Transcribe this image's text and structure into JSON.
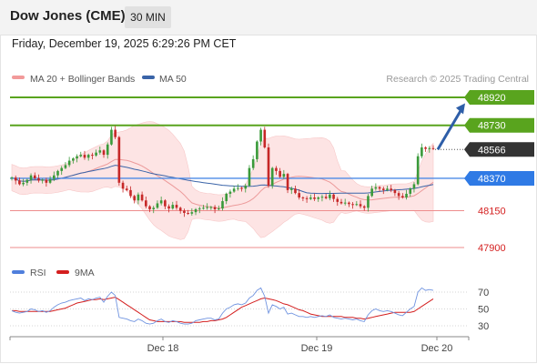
{
  "header": {
    "title": "Dow Jones (CME)",
    "timeframe": "30 MIN"
  },
  "timestamp": "Friday, December 19, 2025 6:29:26 PM CET",
  "legend": {
    "items": [
      {
        "label": "MA 20 + Bollinger Bands",
        "color": "#f29a9a"
      },
      {
        "label": "MA 50",
        "color": "#3a64a8"
      }
    ],
    "credit": "Research © 2025 Trading Central"
  },
  "rsi_legend": {
    "items": [
      {
        "label": "RSI",
        "color": "#4f7fdc"
      },
      {
        "label": "9MA",
        "color": "#d41f1f"
      }
    ]
  },
  "colors": {
    "resistance": "#59a41e",
    "support": "#4c8ae6",
    "weak_support": "#ee8d8d",
    "bollinger": "#fde4e4",
    "up": "#3a9a3a",
    "down": "#c62828",
    "projection": "#2e5ea8",
    "current": "#333333"
  },
  "chart_data": [
    {
      "type": "candlestick",
      "x_tick_labels": [
        "Dec 18",
        "Dec 19",
        "Dec 20"
      ],
      "ylim": [
        47850,
        49000
      ],
      "closes": [
        48375,
        48355,
        48330,
        48340,
        48360,
        48390,
        48370,
        48355,
        48360,
        48340,
        48365,
        48390,
        48420,
        48440,
        48460,
        48490,
        48505,
        48520,
        48530,
        48510,
        48530,
        48525,
        48545,
        48560,
        48530,
        48600,
        48700,
        48650,
        48340,
        48300,
        48290,
        48250,
        48220,
        48260,
        48220,
        48180,
        48160,
        48170,
        48200,
        48220,
        48180,
        48165,
        48190,
        48170,
        48150,
        48135,
        48130,
        48140,
        48160,
        48165,
        48170,
        48175,
        48175,
        48160,
        48165,
        48215,
        48265,
        48280,
        48300,
        48305,
        48300,
        48320,
        48440,
        48500,
        48620,
        48700,
        48580,
        48320,
        48440,
        48420,
        48380,
        48400,
        48290,
        48300,
        48270,
        48240,
        48235,
        48230,
        48240,
        48230,
        48240,
        48245,
        48235,
        48260,
        48230,
        48210,
        48200,
        48205,
        48195,
        48190,
        48195,
        48180,
        48170,
        48250,
        48300,
        48310,
        48300,
        48290,
        48300,
        48290,
        48270,
        48250,
        48240,
        48265,
        48300,
        48330,
        48520,
        48580,
        48570,
        48575,
        48570
      ],
      "levels": [
        {
          "value": 48920,
          "label": "48920",
          "kind": "resistance"
        },
        {
          "value": 48730,
          "label": "48730",
          "kind": "resistance"
        },
        {
          "value": 48566,
          "label": "48566",
          "kind": "current"
        },
        {
          "value": 48370,
          "label": "48370",
          "kind": "support"
        },
        {
          "value": 48150,
          "label": "48150",
          "kind": "weak_support"
        },
        {
          "value": 47900,
          "label": "47900",
          "kind": "weak_support"
        }
      ],
      "projection": {
        "from": 48566,
        "to": 48880
      },
      "series": [
        {
          "name": "MA 20 + Bollinger Bands"
        },
        {
          "name": "MA 50"
        }
      ]
    },
    {
      "type": "line",
      "ylim": [
        20,
        80
      ],
      "y_tick_labels": [
        "70",
        "50",
        "30"
      ],
      "series": [
        {
          "name": "RSI",
          "values": [
            48,
            46,
            45,
            46,
            47,
            50,
            49,
            47,
            48,
            46,
            48,
            52,
            55,
            57,
            58,
            60,
            61,
            62,
            63,
            60,
            62,
            61,
            63,
            64,
            58,
            65,
            70,
            66,
            40,
            39,
            38,
            36,
            35,
            38,
            36,
            33,
            32,
            33,
            36,
            38,
            35,
            34,
            36,
            35,
            33,
            32,
            32,
            33,
            36,
            37,
            38,
            39,
            39,
            37,
            38,
            45,
            50,
            52,
            55,
            56,
            55,
            57,
            63,
            66,
            72,
            75,
            65,
            45,
            55,
            53,
            50,
            52,
            44,
            45,
            43,
            41,
            41,
            40,
            41,
            40,
            41,
            42,
            41,
            43,
            40,
            39,
            38,
            39,
            38,
            37,
            38,
            36,
            35,
            43,
            48,
            50,
            48,
            47,
            48,
            47,
            45,
            43,
            42,
            46,
            50,
            53,
            70,
            75,
            72,
            73,
            72
          ]
        },
        {
          "name": "9MA",
          "values": [
            48,
            48,
            47,
            47,
            47,
            47,
            47,
            47,
            47,
            47,
            47,
            48,
            49,
            50,
            51,
            53,
            55,
            57,
            58,
            59,
            60,
            61,
            61,
            62,
            61,
            62,
            63,
            64,
            61,
            58,
            55,
            52,
            49,
            46,
            43,
            40,
            37,
            36,
            35,
            35,
            35,
            35,
            35,
            35,
            35,
            34,
            34,
            34,
            34,
            34,
            35,
            35,
            36,
            36,
            37,
            38,
            40,
            43,
            46,
            49,
            52,
            54,
            56,
            58,
            60,
            62,
            63,
            62,
            61,
            60,
            58,
            56,
            55,
            53,
            51,
            49,
            48,
            46,
            44,
            43,
            42,
            41,
            41,
            41,
            41,
            41,
            41,
            40,
            40,
            40,
            39,
            39,
            38,
            39,
            40,
            41,
            42,
            43,
            44,
            45,
            46,
            46,
            46,
            46,
            46,
            47,
            50,
            53,
            56,
            59,
            62
          ]
        }
      ]
    }
  ]
}
